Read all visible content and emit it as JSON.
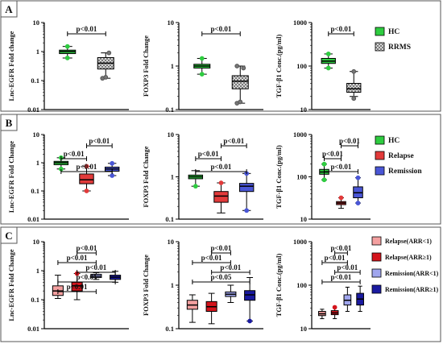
{
  "colors": {
    "hc": "#2ecc40",
    "rrms_fill": "#9a9a9a",
    "relapse": "#e23a3a",
    "remission": "#4a56d6",
    "low_relapse": "#f4a0a0",
    "high_relapse": "#d4141c",
    "low_remission": "#a0a6ee",
    "high_remission": "#1a1aa0"
  },
  "chart_data": [
    {
      "panel": "A",
      "type": "box",
      "scale": "log",
      "ylabel": "Lnc-EGFR Fold change",
      "yticks": [
        "0.01",
        "0.1",
        "1",
        "10"
      ],
      "ylim": [
        0.01,
        10
      ],
      "categories": [
        "HC",
        "RRMS"
      ],
      "boxes": [
        {
          "group": "HC",
          "min": 0.6,
          "q1": 0.85,
          "median": 1.0,
          "q3": 1.12,
          "max": 1.5,
          "outliers": [
            0.6,
            1.5
          ]
        },
        {
          "group": "RRMS",
          "min": 0.12,
          "q1": 0.25,
          "median": 0.4,
          "q3": 0.62,
          "max": 0.9,
          "outliers": [
            0.12,
            0.13,
            0.9
          ]
        }
      ],
      "annotations": [
        {
          "text": "p<0.01",
          "from": 0,
          "to": 1
        }
      ]
    },
    {
      "panel": "A",
      "type": "box",
      "scale": "log",
      "ylabel": "FOXP3 Fold Change",
      "yticks": [
        "0.1",
        "1",
        "10"
      ],
      "ylim": [
        0.1,
        10
      ],
      "categories": [
        "HC",
        "RRMS"
      ],
      "boxes": [
        {
          "group": "HC",
          "min": 0.65,
          "q1": 0.9,
          "median": 1.0,
          "q3": 1.1,
          "max": 1.5,
          "outliers": [
            0.65,
            1.5
          ]
        },
        {
          "group": "RRMS",
          "min": 0.14,
          "q1": 0.3,
          "median": 0.45,
          "q3": 0.6,
          "max": 1.0,
          "outliers": [
            0.14,
            0.15,
            0.9,
            1.0
          ]
        }
      ],
      "annotations": [
        {
          "text": "p<0.01",
          "from": 0,
          "to": 1
        }
      ]
    },
    {
      "panel": "A",
      "type": "box",
      "scale": "log",
      "ylabel": "TGF-β1 Conc.(pg/ml)",
      "yticks": [
        "10",
        "100",
        "1000"
      ],
      "ylim": [
        10,
        1000
      ],
      "categories": [
        "HC",
        "RRMS"
      ],
      "boxes": [
        {
          "group": "HC",
          "min": 90,
          "q1": 115,
          "median": 130,
          "q3": 150,
          "max": 190,
          "outliers": [
            90,
            190
          ]
        },
        {
          "group": "RRMS",
          "min": 20,
          "q1": 25,
          "median": 30,
          "q3": 40,
          "max": 75,
          "outliers": [
            18,
            75
          ]
        }
      ],
      "annotations": [
        {
          "text": "p<0.01",
          "from": 0,
          "to": 1
        }
      ]
    },
    {
      "panel": "B",
      "type": "box",
      "scale": "log",
      "ylabel": "Lnc-EGFR Fold Change",
      "yticks": [
        "0.01",
        "0.1",
        "1",
        "10"
      ],
      "ylim": [
        0.01,
        10
      ],
      "categories": [
        "HC",
        "Relapse",
        "Remission"
      ],
      "boxes": [
        {
          "group": "HC",
          "min": 0.6,
          "q1": 0.85,
          "median": 1.0,
          "q3": 1.12,
          "max": 1.5,
          "outliers": [
            0.6,
            1.5
          ]
        },
        {
          "group": "Relapse",
          "min": 0.1,
          "q1": 0.18,
          "median": 0.25,
          "q3": 0.4,
          "max": 0.75,
          "outliers": [
            0.1,
            0.75
          ]
        },
        {
          "group": "Remission",
          "min": 0.35,
          "q1": 0.5,
          "median": 0.6,
          "q3": 0.7,
          "max": 0.95,
          "outliers": [
            0.35,
            0.95
          ]
        }
      ],
      "annotations": [
        {
          "text": "p<0.01",
          "from": 0,
          "to": 2
        },
        {
          "text": "p<0.01",
          "from": 0,
          "to": 1
        },
        {
          "text": "p<0.01",
          "from": 1,
          "to": 2
        }
      ]
    },
    {
      "panel": "B",
      "type": "box",
      "scale": "log",
      "ylabel": "FOXP3 Fold Change",
      "yticks": [
        "0.1",
        "1",
        "10"
      ],
      "ylim": [
        0.1,
        10
      ],
      "categories": [
        "HC",
        "Relapse",
        "Remission"
      ],
      "boxes": [
        {
          "group": "HC",
          "min": 0.6,
          "q1": 0.9,
          "median": 1.0,
          "q3": 1.1,
          "max": 1.4,
          "outliers": [
            0.6
          ]
        },
        {
          "group": "Relapse",
          "min": 0.14,
          "q1": 0.25,
          "median": 0.35,
          "q3": 0.45,
          "max": 0.72,
          "outliers": [
            0.72
          ]
        },
        {
          "group": "Remission",
          "min": 0.16,
          "q1": 0.45,
          "median": 0.6,
          "q3": 0.7,
          "max": 1.2,
          "outliers": [
            0.16,
            1.2
          ]
        }
      ],
      "annotations": [
        {
          "text": "p<0.01",
          "from": 0,
          "to": 2
        },
        {
          "text": "p<0.01",
          "from": 0,
          "to": 1
        },
        {
          "text": "p<0.01",
          "from": 1,
          "to": 2
        }
      ]
    },
    {
      "panel": "B",
      "type": "box",
      "scale": "log",
      "ylabel": "TGF-β1 Conc.(pg/ml)",
      "yticks": [
        "10",
        "100",
        "1000"
      ],
      "ylim": [
        10,
        1000
      ],
      "categories": [
        "HC",
        "Relapse",
        "Remission"
      ],
      "boxes": [
        {
          "group": "HC",
          "min": 85,
          "q1": 115,
          "median": 130,
          "q3": 150,
          "max": 200,
          "outliers": [
            85,
            200
          ]
        },
        {
          "group": "Relapse",
          "min": 18,
          "q1": 22,
          "median": 24,
          "q3": 26,
          "max": 32,
          "outliers": [
            32
          ]
        },
        {
          "group": "Remission",
          "min": 24,
          "q1": 32,
          "median": 42,
          "q3": 58,
          "max": 95,
          "outliers": [
            24,
            95
          ]
        }
      ],
      "annotations": [
        {
          "text": "p<0.01",
          "from": 0,
          "to": 2
        },
        {
          "text": "p<0.01",
          "from": 0,
          "to": 1
        },
        {
          "text": "p<0.01",
          "from": 1,
          "to": 2
        }
      ]
    },
    {
      "panel": "C",
      "type": "box",
      "scale": "log",
      "ylabel": "Lnc-EGFR Fold Change",
      "yticks": [
        "0.01",
        "0.1",
        "1",
        "10"
      ],
      "ylim": [
        0.01,
        10
      ],
      "categories": [
        "Relapse(ARR<1)",
        "Relapse(ARR≥1)",
        "Remission(ARR<1)",
        "Remission(ARR≥1)"
      ],
      "boxes": [
        {
          "group": "Relapse(ARR<1)",
          "min": 0.11,
          "q1": 0.14,
          "median": 0.2,
          "q3": 0.3,
          "max": 0.7,
          "outliers": []
        },
        {
          "group": "Relapse(ARR≥1)",
          "min": 0.1,
          "q1": 0.2,
          "median": 0.3,
          "q3": 0.4,
          "max": 0.8,
          "outliers": [
            0.8
          ]
        },
        {
          "group": "Remission(ARR<1)",
          "min": 0.5,
          "q1": 0.58,
          "median": 0.65,
          "q3": 0.75,
          "max": 0.85,
          "outliers": []
        },
        {
          "group": "Remission(ARR≥1)",
          "min": 0.4,
          "q1": 0.5,
          "median": 0.6,
          "q3": 0.7,
          "max": 0.95,
          "outliers": []
        }
      ],
      "annotations": [
        {
          "text": "p<0.01",
          "from": 0,
          "to": 2
        },
        {
          "text": "p<0.01",
          "from": 0,
          "to": 3
        },
        {
          "text": "p<0.01",
          "from": 1,
          "to": 3
        },
        {
          "text": "p<0.01",
          "from": 0,
          "to": 2
        },
        {
          "text": "p<0.01",
          "from": 1,
          "to": 2
        }
      ]
    },
    {
      "panel": "C",
      "type": "box",
      "scale": "log",
      "ylabel": "FOXP3 Fold Change",
      "yticks": [
        "0.1",
        "1",
        "10"
      ],
      "ylim": [
        0.1,
        10
      ],
      "categories": [
        "Relapse(ARR<1)",
        "Relapse(ARR≥1)",
        "Remission(ARR<1)",
        "Remission(ARR≥1)"
      ],
      "boxes": [
        {
          "group": "Relapse(ARR<1)",
          "min": 0.14,
          "q1": 0.28,
          "median": 0.35,
          "q3": 0.45,
          "max": 0.6,
          "outliers": []
        },
        {
          "group": "Relapse(ARR≥1)",
          "min": 0.13,
          "q1": 0.25,
          "median": 0.32,
          "q3": 0.42,
          "max": 0.65,
          "outliers": []
        },
        {
          "group": "Remission(ARR<1)",
          "min": 0.4,
          "q1": 0.55,
          "median": 0.62,
          "q3": 0.7,
          "max": 1.0,
          "outliers": []
        },
        {
          "group": "Remission(ARR≥1)",
          "min": 0.15,
          "q1": 0.45,
          "median": 0.6,
          "q3": 0.75,
          "max": 1.5,
          "outliers": [
            0.15
          ]
        }
      ],
      "annotations": [
        {
          "text": "p<0.05",
          "from": 0,
          "to": 3
        },
        {
          "text": "p<0.01",
          "from": 1,
          "to": 3
        },
        {
          "text": "p<0.01",
          "from": 0,
          "to": 2
        },
        {
          "text": "p<0.01",
          "from": 1,
          "to": 2
        }
      ]
    },
    {
      "panel": "C",
      "type": "box",
      "scale": "log",
      "ylabel": "TGF-β1 Conc.(pg/ml)",
      "yticks": [
        "10",
        "100",
        "1000"
      ],
      "ylim": [
        10,
        1000
      ],
      "categories": [
        "Relapse(ARR<1)",
        "Relapse(ARR≥1)",
        "Remission(ARR<1)",
        "Remission(ARR≥1)"
      ],
      "boxes": [
        {
          "group": "Relapse(ARR<1)",
          "min": 17,
          "q1": 20,
          "median": 22,
          "q3": 25,
          "max": 28,
          "outliers": []
        },
        {
          "group": "Relapse(ARR≥1)",
          "min": 17,
          "q1": 21,
          "median": 23,
          "q3": 26,
          "max": 31,
          "outliers": [
            31
          ]
        },
        {
          "group": "Remission(ARR<1)",
          "min": 25,
          "q1": 35,
          "median": 45,
          "q3": 60,
          "max": 90,
          "outliers": []
        },
        {
          "group": "Remission(ARR≥1)",
          "min": 25,
          "q1": 35,
          "median": 48,
          "q3": 65,
          "max": 95,
          "outliers": []
        }
      ],
      "annotations": [
        {
          "text": "p<0.01",
          "from": 0,
          "to": 3
        },
        {
          "text": "p<0.01",
          "from": 1,
          "to": 3
        },
        {
          "text": "p<0.01",
          "from": 0,
          "to": 2
        },
        {
          "text": "p<0.01",
          "from": 1,
          "to": 2
        }
      ]
    }
  ],
  "panels": [
    {
      "letter": "A",
      "legend": [
        {
          "label": "HC",
          "color": "#2ecc40",
          "pattern": "solid"
        },
        {
          "label": "RRMS",
          "color": "#9a9a9a",
          "pattern": "checker"
        }
      ]
    },
    {
      "letter": "B",
      "legend": [
        {
          "label": "HC",
          "color": "#2ecc40",
          "pattern": "solid"
        },
        {
          "label": "Relapse",
          "color": "#e23a3a",
          "pattern": "solid"
        },
        {
          "label": "Remission",
          "color": "#4a56d6",
          "pattern": "solid"
        }
      ]
    },
    {
      "letter": "C",
      "legend": [
        {
          "label": "Relapse(ARR<1)",
          "color": "#f4a0a0",
          "pattern": "solid"
        },
        {
          "label": "Relapse(ARR≥1)",
          "color": "#d4141c",
          "pattern": "solid"
        },
        {
          "label": "Remission(ARR<1)",
          "color": "#a0a6ee",
          "pattern": "solid"
        },
        {
          "label": "Remission(ARR≥1)",
          "color": "#1a1aa0",
          "pattern": "solid"
        }
      ]
    }
  ],
  "group_colors": {
    "HC": "#2ecc40",
    "RRMS": "#9a9a9a",
    "Relapse": "#e23a3a",
    "Remission": "#4a56d6",
    "Relapse(ARR<1)": "#f4a0a0",
    "Relapse(ARR≥1)": "#d4141c",
    "Remission(ARR<1)": "#a0a6ee",
    "Remission(ARR≥1)": "#1a1aa0"
  },
  "group_patterns": {
    "RRMS": "checker"
  }
}
